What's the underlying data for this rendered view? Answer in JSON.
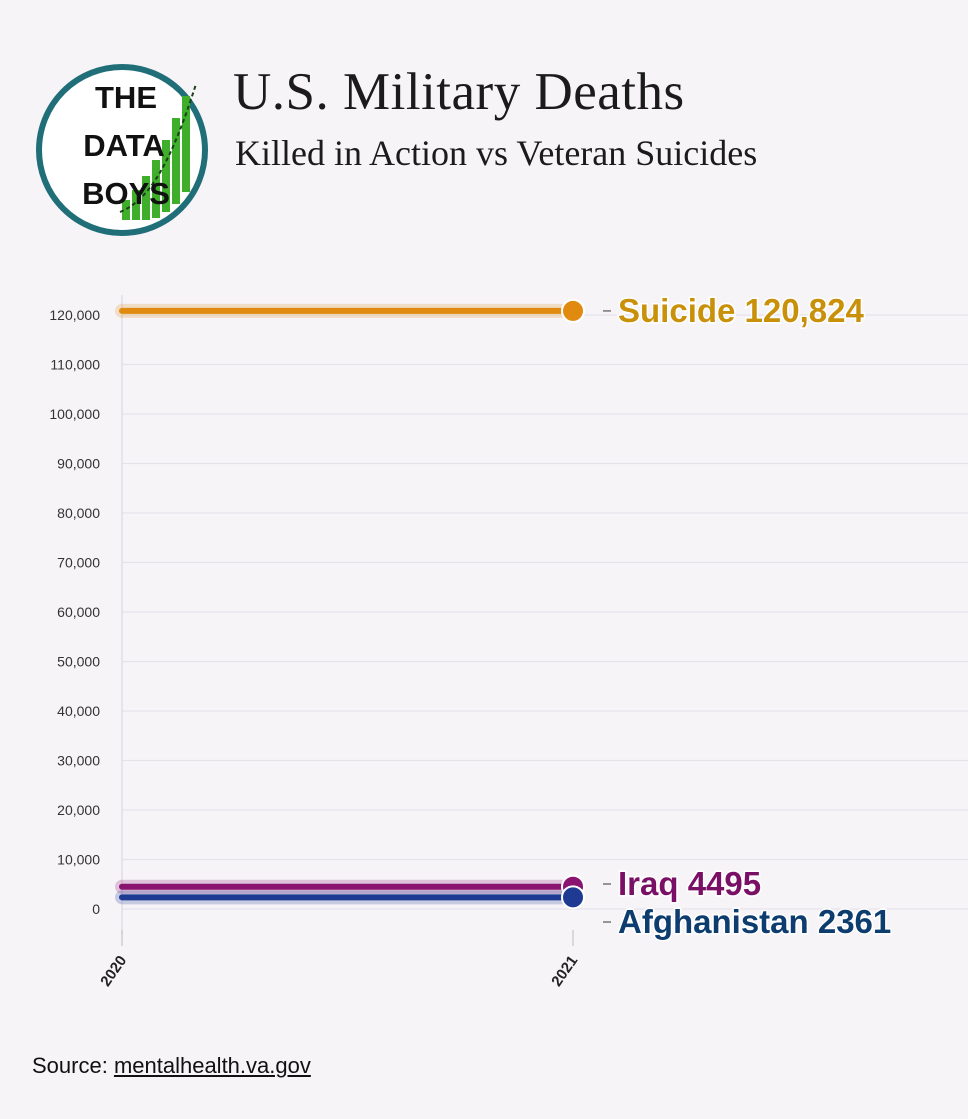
{
  "logo": {
    "line1": "THE",
    "line2": "DATA",
    "line3": "BOYS"
  },
  "header": {
    "title": "U.S. Military Deaths",
    "subtitle": "Killed in Action vs Veteran Suicides"
  },
  "source": {
    "prefix": "Source: ",
    "link": "mentalhealth.va.gov"
  },
  "chart_data": {
    "type": "line",
    "x": [
      "2020",
      "2021"
    ],
    "ylim": [
      0,
      120000
    ],
    "yticks": [
      0,
      10000,
      20000,
      30000,
      40000,
      50000,
      60000,
      70000,
      80000,
      90000,
      100000,
      110000,
      120000
    ],
    "ytick_labels": [
      "0",
      "10,000",
      "20,000",
      "30,000",
      "40,000",
      "50,000",
      "60,000",
      "70,000",
      "80,000",
      "90,000",
      "100,000",
      "110,000",
      "120,000"
    ],
    "grid": true,
    "series": [
      {
        "name": "Suicide",
        "values": [
          120824,
          120824
        ],
        "label": "Suicide 120,824",
        "color": "#e08a10",
        "label_color": "#c9900a"
      },
      {
        "name": "Iraq",
        "values": [
          4495,
          4495
        ],
        "label": "Iraq 4495",
        "color": "#8a1370",
        "label_color": "#7a0f66"
      },
      {
        "name": "Afghanistan",
        "values": [
          2361,
          2361
        ],
        "label": "Afghanistan 2361",
        "color": "#1f3a93",
        "label_color": "#0d3c6e"
      }
    ]
  }
}
